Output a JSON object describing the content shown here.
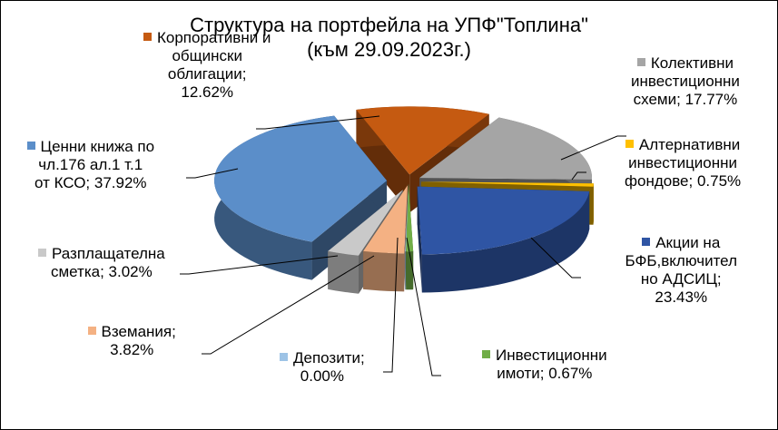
{
  "chart_data": {
    "type": "pie",
    "title_line1": "Структура на портфейла на УПФ\"Топлина\"",
    "title_line2": "(към 29.09.2023г.)",
    "legend": "none",
    "slices": [
      {
        "name": "Корпоративни и общински облигации",
        "value": 12.62,
        "color": "#c55a11",
        "label_lines": [
          "Корпоративни и",
          "общински",
          "облигации;",
          "12.62%"
        ]
      },
      {
        "name": "Колективни инвестиционни схеми",
        "value": 17.77,
        "color": "#a5a5a5",
        "label_lines": [
          "Колективни",
          "инвестиционни",
          "схеми; 17.77%"
        ]
      },
      {
        "name": "Алтернативни инвестиционни фондове",
        "value": 0.75,
        "color": "#ffc000",
        "label_lines": [
          "Алтернативни",
          "инвестиционни",
          "фондове; 0.75%"
        ]
      },
      {
        "name": "Акции на БФБ,включително АДСИЦ",
        "value": 23.43,
        "color": "#2f55a4",
        "label_lines": [
          "Акции на",
          "БФБ,включител",
          "но АДСИЦ;",
          "23.43%"
        ]
      },
      {
        "name": "Инвестиционни имоти",
        "value": 0.67,
        "color": "#70ad47",
        "label_lines": [
          "Инвестиционни",
          "имоти; 0.67%"
        ]
      },
      {
        "name": "Депозити",
        "value": 0.0,
        "color": "#9dc3e6",
        "label_lines": [
          "Депозити;",
          "0.00%"
        ]
      },
      {
        "name": "Вземания",
        "value": 3.82,
        "color": "#f4b183",
        "label_lines": [
          "Вземания;",
          "3.82%"
        ]
      },
      {
        "name": "Разплащателна сметка",
        "value": 3.02,
        "color": "#c9c9c9",
        "label_lines": [
          "Разплащателна",
          "сметка; 3.02%"
        ]
      },
      {
        "name": "Ценни книжа по чл.176 ал.1 т.1 от КСО",
        "value": 37.92,
        "color": "#5b8ec9",
        "label_lines": [
          "Ценни книжа по",
          "чл.176 ал.1 т.1",
          "от КСО; 37.92%"
        ]
      }
    ]
  }
}
